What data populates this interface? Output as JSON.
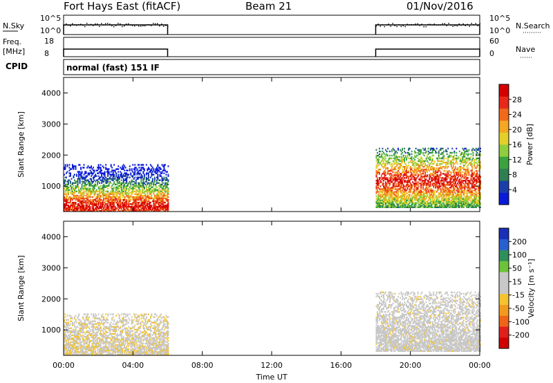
{
  "header": {
    "station": "Fort Hays East (fitACF)",
    "beam": "Beam 21",
    "date": "01/Nov/2016"
  },
  "top_panels": {
    "nsky_label": "N.Sky",
    "nsky_ticks": [
      "10^5",
      "10^0"
    ],
    "nsearch_label": "N.Search",
    "nsearch_ticks": [
      "10^5",
      "10^0"
    ],
    "freq_label_1": "Freq.",
    "freq_label_2": "[MHz]",
    "freq_ticks": [
      "18",
      "8"
    ],
    "nave_label": "Nave",
    "nave_ticks": [
      "60",
      "0"
    ],
    "cpid_label": "CPID",
    "cpid_text": "normal (fast) 151 IF"
  },
  "colors": {
    "power_scale": [
      "#0a1ad8",
      "#1a3fa8",
      "#2f7f52",
      "#3aa33f",
      "#8fce3c",
      "#e3d12a",
      "#f5a623",
      "#f06a1a",
      "#e8291a",
      "#d40000"
    ],
    "velocity_scale": [
      "#1a2fb8",
      "#2a5fd0",
      "#2e8f5a",
      "#6cc33a",
      "#c8c8c8",
      "#c8c8c8",
      "#f4c430",
      "#f39a1e",
      "#f06418",
      "#e0201a",
      "#d00000"
    ],
    "nodata": "#ffffff"
  },
  "chart_data": [
    {
      "type": "heatmap",
      "name": "power",
      "xlabel": "",
      "ylabel": "Slant Range [km]",
      "xlim": [
        0,
        24
      ],
      "ylim": [
        180,
        4500
      ],
      "x_ticks": [
        "00:00",
        "04:00",
        "08:00",
        "12:00",
        "16:00",
        "20:00",
        "00:00"
      ],
      "y_ticks": [
        1000,
        2000,
        3000,
        4000
      ],
      "colorbar_label": "Power [dB]",
      "colorbar_ticks": [
        4,
        8,
        12,
        16,
        20,
        24,
        28
      ],
      "colorbar_range": [
        0,
        32
      ],
      "blocks": [
        {
          "t0": 0.0,
          "t1": 6.0,
          "r0": 180,
          "r1": 1700,
          "vmin": 6,
          "vmax": 28
        },
        {
          "t0": 18.0,
          "t1": 24.0,
          "r0": 300,
          "r1": 2200,
          "vmin": 4,
          "vmax": 30
        }
      ]
    },
    {
      "type": "heatmap",
      "name": "velocity",
      "xlabel": "Time UT",
      "ylabel": "Slant Range [km]",
      "xlim": [
        0,
        24
      ],
      "ylim": [
        180,
        4500
      ],
      "x_ticks": [
        "00:00",
        "04:00",
        "08:00",
        "12:00",
        "16:00",
        "20:00",
        "00:00"
      ],
      "y_ticks": [
        1000,
        2000,
        3000,
        4000
      ],
      "colorbar_label": "Velocity [m s⁻¹]",
      "colorbar_ticks": [
        200,
        100,
        50,
        15,
        -15,
        -50,
        -100,
        -200
      ],
      "colorbar_range": [
        -250,
        250
      ],
      "blocks": [
        {
          "t0": 0.0,
          "t1": 6.0,
          "r0": 180,
          "r1": 1500,
          "vmin": -60,
          "vmax": 60
        },
        {
          "t0": 18.0,
          "t1": 24.0,
          "r0": 300,
          "r1": 2200,
          "vmin": -20,
          "vmax": 20
        }
      ]
    }
  ]
}
